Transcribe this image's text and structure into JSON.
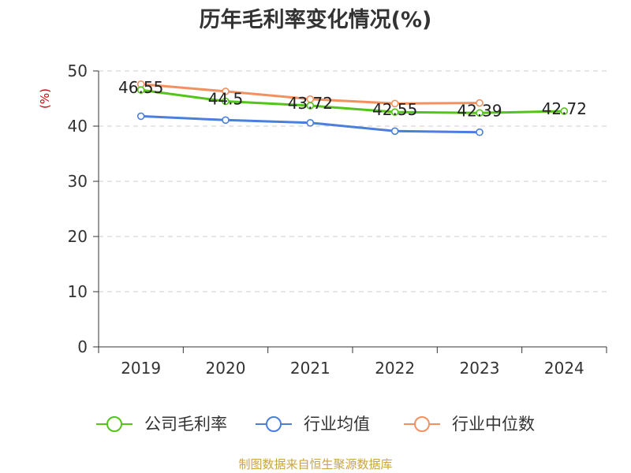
{
  "chart_data": {
    "type": "line",
    "title": "历年毛利率变化情况(%)",
    "ylabel": "(%)",
    "categories": [
      "2019",
      "2020",
      "2021",
      "2022",
      "2023",
      "2024"
    ],
    "ylim": [
      0,
      50
    ],
    "yticks": [
      0,
      10,
      20,
      30,
      40,
      50
    ],
    "grid": true,
    "legend_position": "bottom",
    "series": [
      {
        "name": "公司毛利率",
        "color": "#52c41a",
        "values": [
          46.55,
          44.5,
          43.72,
          42.55,
          42.39,
          42.72
        ],
        "labels": [
          "46.55",
          "44.5",
          "43.72",
          "42.55",
          "42.39",
          "42.72"
        ]
      },
      {
        "name": "行业均值",
        "color": "#4a7fdc",
        "values": [
          41.8,
          41.1,
          40.6,
          39.1,
          38.9,
          null
        ],
        "labels": []
      },
      {
        "name": "行业中位数",
        "color": "#f39060",
        "values": [
          47.6,
          46.3,
          44.9,
          44.1,
          44.2,
          null
        ],
        "labels": []
      }
    ]
  },
  "footer": {
    "source": "制图数据来自恒生聚源数据库"
  }
}
